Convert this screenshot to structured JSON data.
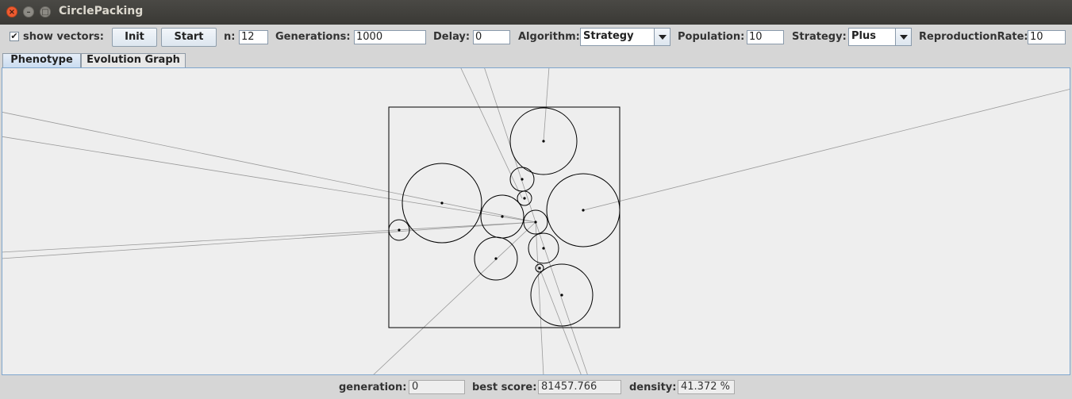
{
  "window": {
    "title": "CirclePacking"
  },
  "toolbar": {
    "show_vectors_label": "show vectors:",
    "show_vectors_checked": true,
    "init_label": "Init",
    "start_label": "Start",
    "n_label": "n:",
    "n_value": "12",
    "generations_label": "Generations:",
    "generations_value": "1000",
    "delay_label": "Delay:",
    "delay_value": "0",
    "algorithm_label": "Algorithm:",
    "algorithm_value": "Strategy",
    "population_label": "Population:",
    "population_value": "10",
    "strategy_label": "Strategy:",
    "strategy_value": "Plus",
    "reproduction_label": "ReproductionRate:",
    "reproduction_value": "10"
  },
  "tabs": [
    {
      "label": "Phenotype",
      "active": true
    },
    {
      "label": "Evolution Graph",
      "active": false
    }
  ],
  "status": {
    "generation_label": "generation:",
    "generation_value": "0",
    "best_score_label": "best score:",
    "best_score_value": "81457.766",
    "density_label": "density:",
    "density_value": "41.372 %"
  }
}
